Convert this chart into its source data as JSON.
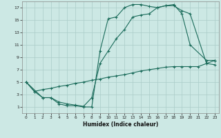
{
  "xlabel": "Humidex (Indice chaleur)",
  "bg_color": "#cce8e4",
  "line_color": "#1a6b5a",
  "grid_color": "#aaccc8",
  "xlim": [
    -0.5,
    23.5
  ],
  "ylim": [
    0,
    18
  ],
  "xticks": [
    0,
    1,
    2,
    3,
    4,
    5,
    6,
    7,
    8,
    9,
    10,
    11,
    12,
    13,
    14,
    15,
    16,
    17,
    18,
    19,
    20,
    21,
    22,
    23
  ],
  "yticks": [
    1,
    3,
    5,
    7,
    9,
    11,
    13,
    15,
    17
  ],
  "line1_x": [
    0,
    1,
    2,
    3,
    4,
    5,
    6,
    7,
    8,
    9,
    10,
    11,
    12,
    13,
    14,
    15,
    16,
    17,
    18,
    19,
    20,
    22,
    23
  ],
  "line1_y": [
    5,
    3.5,
    2.5,
    2.5,
    1.5,
    1.2,
    1.2,
    1.0,
    1.0,
    10.0,
    15.2,
    15.5,
    17.0,
    17.5,
    17.5,
    17.2,
    17.0,
    17.3,
    17.5,
    16.0,
    11.0,
    8.5,
    8.5
  ],
  "line2_x": [
    0,
    2,
    3,
    4,
    5,
    6,
    7,
    8,
    9,
    10,
    11,
    12,
    13,
    14,
    15,
    16,
    17,
    18,
    19,
    20,
    22,
    23
  ],
  "line2_y": [
    5,
    2.5,
    2.5,
    1.8,
    1.5,
    1.3,
    1.1,
    2.5,
    8.0,
    10.0,
    12.0,
    13.5,
    15.5,
    15.8,
    16.0,
    17.0,
    17.3,
    17.3,
    16.5,
    16.0,
    8.0,
    8.5
  ],
  "line3_x": [
    0,
    1,
    2,
    3,
    4,
    5,
    6,
    7,
    8,
    9,
    10,
    11,
    12,
    13,
    14,
    15,
    16,
    17,
    18,
    19,
    20,
    21,
    22,
    23
  ],
  "line3_y": [
    5,
    3.5,
    3.8,
    4.0,
    4.3,
    4.5,
    4.8,
    5.0,
    5.3,
    5.5,
    5.8,
    6.0,
    6.2,
    6.5,
    6.8,
    7.0,
    7.2,
    7.4,
    7.5,
    7.5,
    7.5,
    7.5,
    8.0,
    7.8
  ]
}
